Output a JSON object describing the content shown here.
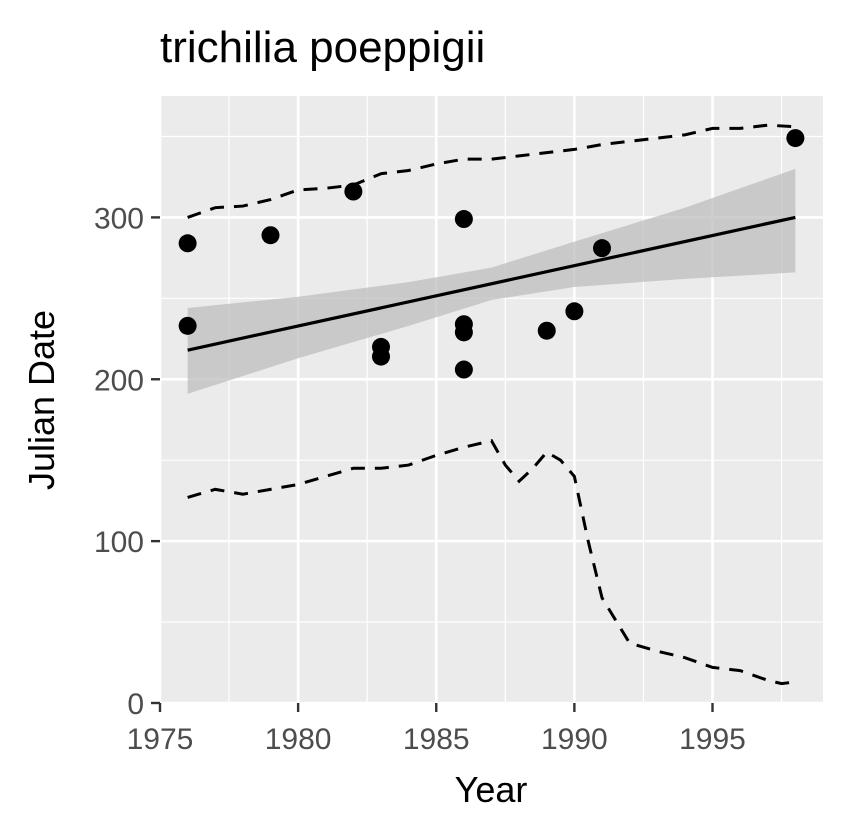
{
  "chart_data": {
    "type": "scatter",
    "title": "trichilia poeppigii",
    "xlabel": "Year",
    "ylabel": "Julian Date",
    "xlim": [
      1975,
      1999
    ],
    "ylim": [
      0,
      375
    ],
    "x_ticks": [
      1975,
      1980,
      1985,
      1990,
      1995
    ],
    "y_ticks": [
      0,
      100,
      200,
      300
    ],
    "grid": true,
    "legend": "none",
    "colors": {
      "panel": "#ebebeb",
      "grid": "#ffffff",
      "points": "#000000",
      "ribbon": "#bdbdbd",
      "tick_text": "#4d4d4d"
    },
    "points": [
      {
        "x": 1976,
        "y": 284
      },
      {
        "x": 1976,
        "y": 233
      },
      {
        "x": 1979,
        "y": 289
      },
      {
        "x": 1982,
        "y": 316
      },
      {
        "x": 1983,
        "y": 220
      },
      {
        "x": 1983,
        "y": 214
      },
      {
        "x": 1986,
        "y": 299
      },
      {
        "x": 1986,
        "y": 234
      },
      {
        "x": 1986,
        "y": 229
      },
      {
        "x": 1986,
        "y": 206
      },
      {
        "x": 1989,
        "y": 230
      },
      {
        "x": 1990,
        "y": 242
      },
      {
        "x": 1991,
        "y": 281
      },
      {
        "x": 1998,
        "y": 349
      }
    ],
    "trend_line": {
      "x": [
        1976,
        1998
      ],
      "y": [
        218,
        300
      ]
    },
    "confidence_band": {
      "x": [
        1976,
        1980,
        1984,
        1987,
        1990,
        1994,
        1998
      ],
      "lower": [
        191,
        213,
        233,
        249,
        257,
        262,
        266
      ],
      "upper": [
        244,
        251,
        260,
        269,
        285,
        306,
        330
      ]
    },
    "upper_bound_line": {
      "x": [
        1976,
        1977,
        1978,
        1979,
        1980,
        1981,
        1982,
        1983,
        1984,
        1985,
        1986,
        1987,
        1988,
        1989,
        1990,
        1991,
        1992,
        1993,
        1994,
        1995,
        1996,
        1997,
        1998
      ],
      "y": [
        300,
        306,
        307,
        311,
        317,
        318,
        320,
        327,
        329,
        333,
        336,
        336,
        338,
        340,
        342,
        345,
        347,
        349,
        351,
        355,
        355,
        357,
        356
      ]
    },
    "lower_bound_line": {
      "x": [
        1976,
        1977,
        1978,
        1979,
        1980,
        1981,
        1982,
        1983,
        1984,
        1985,
        1986,
        1987,
        1987.5,
        1988,
        1988.5,
        1989,
        1989.5,
        1990,
        1990.5,
        1991,
        1992,
        1993,
        1994,
        1995,
        1996,
        1997,
        1997.5,
        1998
      ],
      "y": [
        127,
        132,
        129,
        132,
        135,
        140,
        145,
        145,
        147,
        153,
        158,
        162,
        147,
        137,
        145,
        155,
        150,
        140,
        100,
        65,
        37,
        32,
        28,
        22,
        20,
        14,
        12,
        13
      ]
    }
  }
}
